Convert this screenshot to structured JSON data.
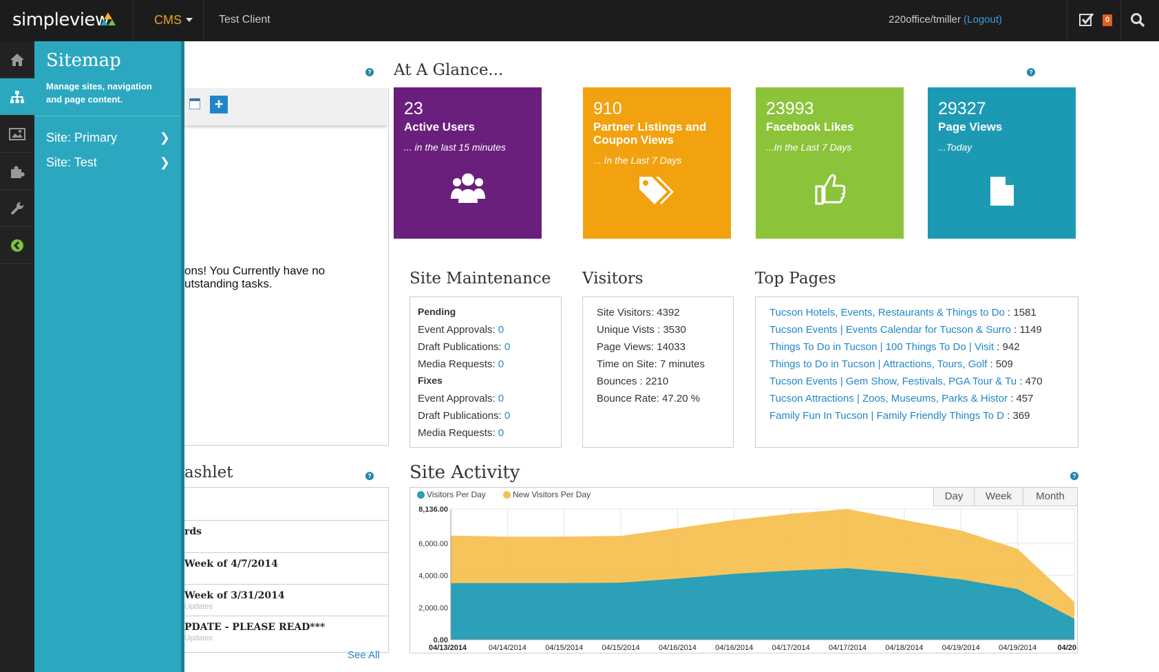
{
  "topbar": {
    "logo": "simpleview",
    "menu": "CMS",
    "client": "Test Client",
    "user": "220office/tmiller",
    "logout": "(Logout)",
    "badge": "0"
  },
  "sidebar": {
    "icons": [
      "home-icon",
      "sitemap-icon",
      "image-icon",
      "puzzle-icon",
      "wrench-icon",
      "collapse-icon"
    ]
  },
  "flyout": {
    "title": "Sitemap",
    "description": "Manage sites, navigation and page content.",
    "items": [
      {
        "label": "Site: Primary"
      },
      {
        "label": "Site: Test"
      }
    ]
  },
  "tasks": {
    "message_line1": "ons! You Currently have no",
    "message_line2": "utstanding tasks."
  },
  "glance": {
    "title": "At A Glance...",
    "tiles": [
      {
        "value": "23",
        "label": "Active Users",
        "sub": "... in the last 15 minutes",
        "color": "#6a1f7d"
      },
      {
        "value": "910",
        "label": "Partner Listings and Coupon Views",
        "sub": "... In the Last 7 Days",
        "color": "#f2a20f"
      },
      {
        "value": "23993",
        "label": "Facebook Likes",
        "sub": "...In the Last 7 Days",
        "color": "#8bc43a"
      },
      {
        "value": "29327",
        "label": "Page Views",
        "sub": "...Today",
        "color": "#1d9ab3"
      }
    ]
  },
  "maintenance": {
    "title": "Site Maintenance",
    "pending_label": "Pending",
    "fixes_label": "Fixes",
    "pending": [
      {
        "label": "Event Approvals:",
        "value": "0"
      },
      {
        "label": "Draft Publications:",
        "value": "0"
      },
      {
        "label": "Media Requests:",
        "value": "0"
      }
    ],
    "fixes": [
      {
        "label": "Event Approvals:",
        "value": "0"
      },
      {
        "label": "Draft Publications:",
        "value": "0"
      },
      {
        "label": "Media Requests:",
        "value": "0"
      }
    ]
  },
  "visitors": {
    "title": "Visitors",
    "rows": [
      "Site Visitors: 4392",
      "Unique Vists : 3530",
      "Page Views: 14033",
      "Time on Site: 7 minutes",
      "Bounces : 2210",
      "Bounce Rate: 47.20 %"
    ]
  },
  "top_pages": {
    "title": "Top Pages",
    "rows": [
      {
        "label": "Tucson Hotels, Events, Restaurants & Things to Do",
        "count": " : 1581"
      },
      {
        "label": "Tucson Events | Events Calendar for Tucson & Surro",
        "count": " : 1149"
      },
      {
        "label": "Things To Do in Tucson | 100 Things To Do | Visit",
        "count": " : 942"
      },
      {
        "label": "Things to Do in Tucson | Attractions, Tours, Golf",
        "count": " : 509"
      },
      {
        "label": "Tucson Events | Gem Show, Festivals, PGA Tour & Tu",
        "count": " : 470"
      },
      {
        "label": "Tucson Attractions | Zoos, Museums, Parks & Histor",
        "count": " : 457"
      },
      {
        "label": "Family Fun In Tucson | Family Friendly Things To D",
        "count": " : 369"
      }
    ]
  },
  "dashlet": {
    "title_partial": "ashlet",
    "rows": [
      {
        "title": "rds",
        "sub": ""
      },
      {
        "title": "Week of 4/7/2014",
        "sub": ""
      },
      {
        "title": "Week of 3/31/2014",
        "sub": "Updates"
      },
      {
        "title": "PDATE - PLEASE READ***",
        "sub": "Updates"
      }
    ],
    "see_all": "See All"
  },
  "activity": {
    "title": "Site Activity",
    "ranges": [
      "Day",
      "Week",
      "Month"
    ]
  },
  "chart_data": {
    "type": "area",
    "title": "Site Activity",
    "x": [
      "04/13/2014",
      "04/14/2014",
      "04/15/2014",
      "04/15/2014",
      "04/16/2014",
      "04/16/2014",
      "04/17/2014",
      "04/17/2014",
      "04/18/2014",
      "04/19/2014",
      "04/19/2014",
      "04/20"
    ],
    "series": [
      {
        "name": "Visitors Per Day",
        "color": "#2ba0b8",
        "values": [
          3520,
          3520,
          3520,
          3550,
          3800,
          4100,
          4300,
          4450,
          4150,
          3750,
          3150,
          1300
        ]
      },
      {
        "name": "New Visitors Per Day",
        "color": "#f7c152",
        "values": [
          6480,
          6410,
          6420,
          6460,
          6950,
          7450,
          7840,
          8136,
          7450,
          6800,
          5650,
          2350
        ]
      }
    ],
    "ylim": [
      0,
      8136
    ],
    "y_ticks": [
      "0.00",
      "2,000.00",
      "4,000.00",
      "6,000.00",
      "8,136.00"
    ],
    "grid": true,
    "legend": "top-left",
    "stacked": false
  }
}
